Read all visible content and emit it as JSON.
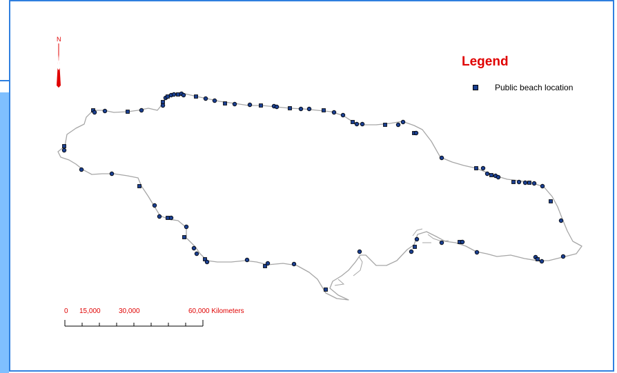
{
  "legend": {
    "title": "Legend",
    "item_label": "Public beach location",
    "symbol_color": "#1b3f8f"
  },
  "north_arrow": {
    "label": "N",
    "icon": "north-arrow-icon",
    "color": "#e00000"
  },
  "scale_bar": {
    "labels": [
      "0",
      "15,000",
      "30,000",
      "60,000 Kilometers"
    ],
    "color": "#e00000"
  },
  "colors": {
    "coastline": "#a6a6a6",
    "frame": "#2f7fdf",
    "text_red": "#e00000"
  }
}
